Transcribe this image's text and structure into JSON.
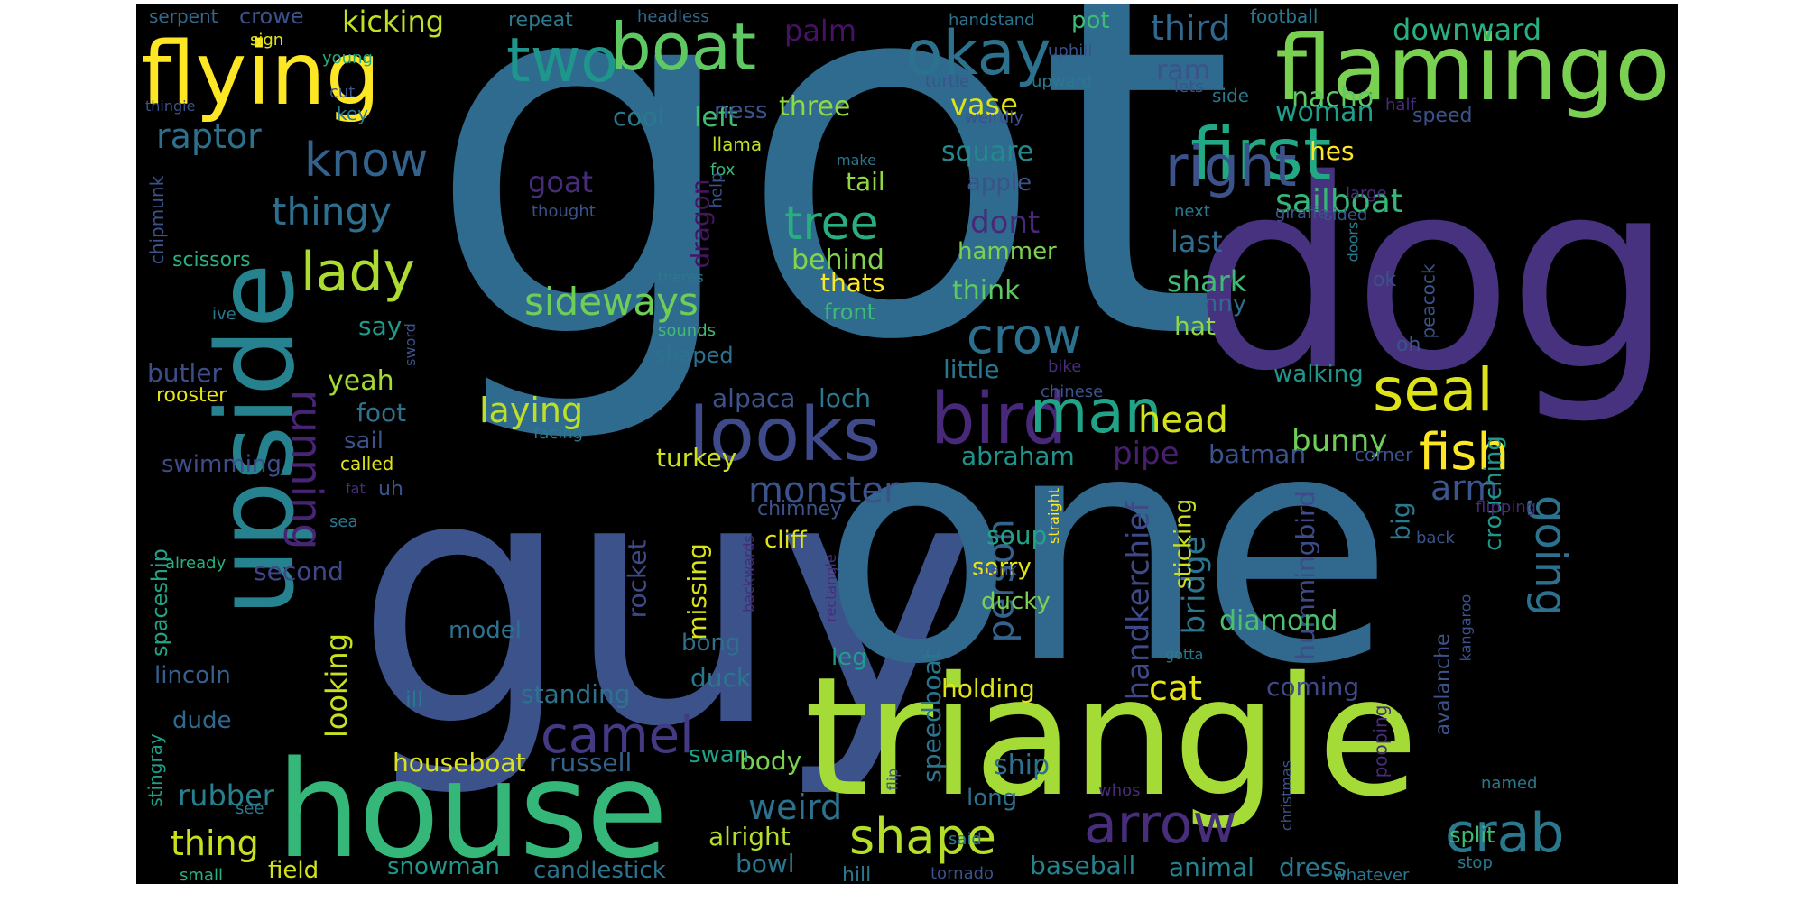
{
  "cloud_words": [
    {
      "text": "got",
      "color": "#2e6b8e"
    },
    {
      "text": "guy",
      "color": "#3b528b"
    },
    {
      "text": "one",
      "color": "#31688e"
    },
    {
      "text": "dog",
      "color": "#46327e"
    },
    {
      "text": "triangle",
      "color": "#a5db36"
    },
    {
      "text": "house",
      "color": "#35b779"
    },
    {
      "text": "upside",
      "color": "#26828e"
    },
    {
      "text": "flamingo",
      "color": "#7ad151"
    },
    {
      "text": "flying",
      "color": "#fde725"
    },
    {
      "text": "looks",
      "color": "#3e4a89"
    },
    {
      "text": "bird",
      "color": "#482878"
    },
    {
      "text": "boat",
      "color": "#5ec962"
    },
    {
      "text": "okay",
      "color": "#2c728e"
    },
    {
      "text": "two",
      "color": "#1f968b"
    },
    {
      "text": "first",
      "color": "#22a884"
    },
    {
      "text": "right",
      "color": "#3b528b"
    },
    {
      "text": "man",
      "color": "#20a386"
    },
    {
      "text": "seal",
      "color": "#dde318"
    },
    {
      "text": "fish",
      "color": "#fde725"
    },
    {
      "text": "arrow",
      "color": "#472d7b"
    },
    {
      "text": "crab",
      "color": "#2a788e"
    },
    {
      "text": "shape",
      "color": "#b5de2b"
    },
    {
      "text": "camel",
      "color": "#443983"
    },
    {
      "text": "tree",
      "color": "#29af7f"
    },
    {
      "text": "know",
      "color": "#33638d"
    },
    {
      "text": "lady",
      "color": "#addc30"
    },
    {
      "text": "crow",
      "color": "#2d708e"
    },
    {
      "text": "running",
      "color": "#482475"
    },
    {
      "text": "going",
      "color": "#2c728e"
    },
    {
      "text": "arm",
      "color": "#3a548c"
    },
    {
      "text": "head",
      "color": "#d2e21b"
    },
    {
      "text": "thingy",
      "color": "#2e6e8e"
    },
    {
      "text": "sideways",
      "color": "#6ece58"
    },
    {
      "text": "raptor",
      "color": "#2d708e"
    },
    {
      "text": "monster",
      "color": "#3b528b"
    },
    {
      "text": "laying",
      "color": "#bddf26"
    },
    {
      "text": "person",
      "color": "#33638d"
    },
    {
      "text": "sailboat",
      "color": "#35b779"
    },
    {
      "text": "pipe",
      "color": "#481f70"
    },
    {
      "text": "bunny",
      "color": "#6ece58"
    },
    {
      "text": "handkerchief",
      "color": "#3e4989"
    },
    {
      "text": "bridge",
      "color": "#2b758e"
    },
    {
      "text": "hummingbird",
      "color": "#3e4a89"
    },
    {
      "text": "weird",
      "color": "#2c728e"
    },
    {
      "text": "thing",
      "color": "#c8e020"
    },
    {
      "text": "rubber",
      "color": "#27808e"
    },
    {
      "text": "cat",
      "color": "#e5e419"
    },
    {
      "text": "kicking",
      "color": "#c2df23"
    },
    {
      "text": "palm",
      "color": "#471164"
    },
    {
      "text": "third",
      "color": "#31688e"
    },
    {
      "text": "nacho",
      "color": "#5ec962"
    },
    {
      "text": "downward",
      "color": "#2ab07f"
    },
    {
      "text": "cool",
      "color": "#2a788e"
    },
    {
      "text": "left",
      "color": "#3fbc73"
    },
    {
      "text": "three",
      "color": "#90d743"
    },
    {
      "text": "ram",
      "color": "#3b528b"
    },
    {
      "text": "woman",
      "color": "#1f9e89"
    },
    {
      "text": "vase",
      "color": "#dde318"
    },
    {
      "text": "square",
      "color": "#23898e"
    },
    {
      "text": "goat",
      "color": "#472c7a"
    },
    {
      "text": "dont",
      "color": "#482878"
    },
    {
      "text": "last",
      "color": "#2f6c8e"
    },
    {
      "text": "shark",
      "color": "#3fbc73"
    },
    {
      "text": "think",
      "color": "#5ec962"
    },
    {
      "text": "hammer",
      "color": "#7ad151"
    },
    {
      "text": "behind",
      "color": "#84d44b"
    },
    {
      "text": "thats",
      "color": "#fde725"
    },
    {
      "text": "tail",
      "color": "#90d743"
    },
    {
      "text": "dragon",
      "color": "#471365"
    },
    {
      "text": "apple",
      "color": "#3b528b"
    },
    {
      "text": "ness",
      "color": "#3b528b"
    },
    {
      "text": "hes",
      "color": "#fde725"
    },
    {
      "text": "skinny",
      "color": "#2f6b8e"
    },
    {
      "text": "hat",
      "color": "#90d743"
    },
    {
      "text": "yeah",
      "color": "#a2da37"
    },
    {
      "text": "say",
      "color": "#1f9a8a"
    },
    {
      "text": "foot",
      "color": "#2c728e"
    },
    {
      "text": "sail",
      "color": "#3b528b"
    },
    {
      "text": "butler",
      "color": "#3d4d8a"
    },
    {
      "text": "swimming",
      "color": "#3e4c8a"
    },
    {
      "text": "little",
      "color": "#2a768e"
    },
    {
      "text": "walking",
      "color": "#1f958b"
    },
    {
      "text": "alpaca",
      "color": "#3b528b"
    },
    {
      "text": "loch",
      "color": "#2a778e"
    },
    {
      "text": "batman",
      "color": "#3b528b"
    },
    {
      "text": "abraham",
      "color": "#1f948c"
    },
    {
      "text": "turkey",
      "color": "#cde11d"
    },
    {
      "text": "second",
      "color": "#3f4788"
    },
    {
      "text": "looking",
      "color": "#c8e020"
    },
    {
      "text": "missing",
      "color": "#d8e219"
    },
    {
      "text": "rocket",
      "color": "#3e4989"
    },
    {
      "text": "soup",
      "color": "#20a386"
    },
    {
      "text": "sorry",
      "color": "#e7e419"
    },
    {
      "text": "ducky",
      "color": "#7ad151"
    },
    {
      "text": "diamond",
      "color": "#4ac16d"
    },
    {
      "text": "sticking",
      "color": "#cae11f"
    },
    {
      "text": "big",
      "color": "#2a788e"
    },
    {
      "text": "crouching",
      "color": "#1f978b"
    },
    {
      "text": "model",
      "color": "#2c728e"
    },
    {
      "text": "bong",
      "color": "#2d708e"
    },
    {
      "text": "duck",
      "color": "#2a768e"
    },
    {
      "text": "standing",
      "color": "#2c738e"
    },
    {
      "text": "holding",
      "color": "#dde318"
    },
    {
      "text": "coming",
      "color": "#3e4989"
    },
    {
      "text": "leg",
      "color": "#1f9e89"
    },
    {
      "text": "cliff",
      "color": "#dde318"
    },
    {
      "text": "chimney",
      "color": "#3b528b"
    },
    {
      "text": "speedboat",
      "color": "#2b748e"
    },
    {
      "text": "ship",
      "color": "#2d718e"
    },
    {
      "text": "body",
      "color": "#7ad151"
    },
    {
      "text": "long",
      "color": "#2c728e"
    },
    {
      "text": "alright",
      "color": "#b5de2b"
    },
    {
      "text": "bowl",
      "color": "#2a768e"
    },
    {
      "text": "candlestick",
      "color": "#2c738e"
    },
    {
      "text": "snowman",
      "color": "#1f988b"
    },
    {
      "text": "baseball",
      "color": "#26828e"
    },
    {
      "text": "animal",
      "color": "#27808e"
    },
    {
      "text": "dress",
      "color": "#2a788e"
    },
    {
      "text": "field",
      "color": "#d2e21b"
    },
    {
      "text": "houseboat",
      "color": "#dde318"
    },
    {
      "text": "russell",
      "color": "#33638d"
    },
    {
      "text": "swan",
      "color": "#1fa287"
    },
    {
      "text": "dude",
      "color": "#31688e"
    },
    {
      "text": "lincoln",
      "color": "#35608d"
    },
    {
      "text": "spaceship",
      "color": "#20a386"
    },
    {
      "text": "stingray",
      "color": "#1f9e89"
    },
    {
      "text": "chipmunk",
      "color": "#3b528b"
    },
    {
      "text": "scissors",
      "color": "#2ab07f"
    },
    {
      "text": "rooster",
      "color": "#e5e419"
    },
    {
      "text": "serpent",
      "color": "#31688e"
    },
    {
      "text": "crowe",
      "color": "#3b528b"
    },
    {
      "text": "sign",
      "color": "#dde318"
    },
    {
      "text": "young",
      "color": "#25ac82"
    },
    {
      "text": "cut",
      "color": "#3b528b"
    },
    {
      "text": "key",
      "color": "#2a788e"
    },
    {
      "text": "thingie",
      "color": "#3b528b"
    },
    {
      "text": "repeat",
      "color": "#2a788e"
    },
    {
      "text": "headless",
      "color": "#31688e"
    },
    {
      "text": "handstand",
      "color": "#2c728e"
    },
    {
      "text": "pot",
      "color": "#3fbc73"
    },
    {
      "text": "football",
      "color": "#2a788e"
    },
    {
      "text": "uphill",
      "color": "#3b528b"
    },
    {
      "text": "lets",
      "color": "#3b528b"
    },
    {
      "text": "turtle",
      "color": "#3b528b"
    },
    {
      "text": "upward",
      "color": "#2a788e"
    },
    {
      "text": "side",
      "color": "#2a788e"
    },
    {
      "text": "weirdly",
      "color": "#3b528b"
    },
    {
      "text": "half",
      "color": "#472c7a"
    },
    {
      "text": "speed",
      "color": "#3b528b"
    },
    {
      "text": "llama",
      "color": "#c2df23"
    },
    {
      "text": "make",
      "color": "#2a788e"
    },
    {
      "text": "fox",
      "color": "#35b779"
    },
    {
      "text": "help",
      "color": "#3b528b"
    },
    {
      "text": "thought",
      "color": "#3b528b"
    },
    {
      "text": "large",
      "color": "#472c7a"
    },
    {
      "text": "next",
      "color": "#2a788e"
    },
    {
      "text": "sided",
      "color": "#3b528b"
    },
    {
      "text": "giraffe",
      "color": "#3b528b"
    },
    {
      "text": "doors",
      "color": "#2a788e"
    },
    {
      "text": "peacock",
      "color": "#3b528b"
    },
    {
      "text": "ok",
      "color": "#3b528b"
    },
    {
      "text": "theres",
      "color": "#2a788e"
    },
    {
      "text": "sounds",
      "color": "#3fbc73"
    },
    {
      "text": "shaped",
      "color": "#2c728e"
    },
    {
      "text": "front",
      "color": "#3fbc73"
    },
    {
      "text": "ive",
      "color": "#2a788e"
    },
    {
      "text": "sword",
      "color": "#3b528b"
    },
    {
      "text": "bike",
      "color": "#472c7a"
    },
    {
      "text": "chinese",
      "color": "#3b528b"
    },
    {
      "text": "oh",
      "color": "#3b528b"
    },
    {
      "text": "facing",
      "color": "#2a788e"
    },
    {
      "text": "called",
      "color": "#dde318"
    },
    {
      "text": "fat",
      "color": "#472c7a"
    },
    {
      "text": "corner",
      "color": "#3b528b"
    },
    {
      "text": "uh",
      "color": "#3b528b"
    },
    {
      "text": "flipping",
      "color": "#472c7a"
    },
    {
      "text": "sea",
      "color": "#2a788e"
    },
    {
      "text": "back",
      "color": "#3b528b"
    },
    {
      "text": "already",
      "color": "#2ab07f"
    },
    {
      "text": "thank",
      "color": "#3b528b"
    },
    {
      "text": "backwards",
      "color": "#472c7a"
    },
    {
      "text": "rectangle",
      "color": "#472c7a"
    },
    {
      "text": "straight",
      "color": "#fde725"
    },
    {
      "text": "gotta",
      "color": "#2a788e"
    },
    {
      "text": "kangaroo",
      "color": "#3b528b"
    },
    {
      "text": "avalanche",
      "color": "#3b528b"
    },
    {
      "text": "pooping",
      "color": "#472c7a"
    },
    {
      "text": "named",
      "color": "#2a788e"
    },
    {
      "text": "christmas",
      "color": "#3b528b"
    },
    {
      "text": "whos",
      "color": "#472c7a"
    },
    {
      "text": "flip",
      "color": "#3b528b"
    },
    {
      "text": "ill",
      "color": "#2a788e"
    },
    {
      "text": "split",
      "color": "#3fbc73"
    },
    {
      "text": "whatever",
      "color": "#2a788e"
    },
    {
      "text": "stop",
      "color": "#2a788e"
    },
    {
      "text": "said",
      "color": "#2a788e"
    },
    {
      "text": "tornado",
      "color": "#3b528b"
    },
    {
      "text": "hill",
      "color": "#2a788e"
    },
    {
      "text": "small",
      "color": "#2ab07f"
    },
    {
      "text": "see",
      "color": "#2a788e"
    }
  ]
}
